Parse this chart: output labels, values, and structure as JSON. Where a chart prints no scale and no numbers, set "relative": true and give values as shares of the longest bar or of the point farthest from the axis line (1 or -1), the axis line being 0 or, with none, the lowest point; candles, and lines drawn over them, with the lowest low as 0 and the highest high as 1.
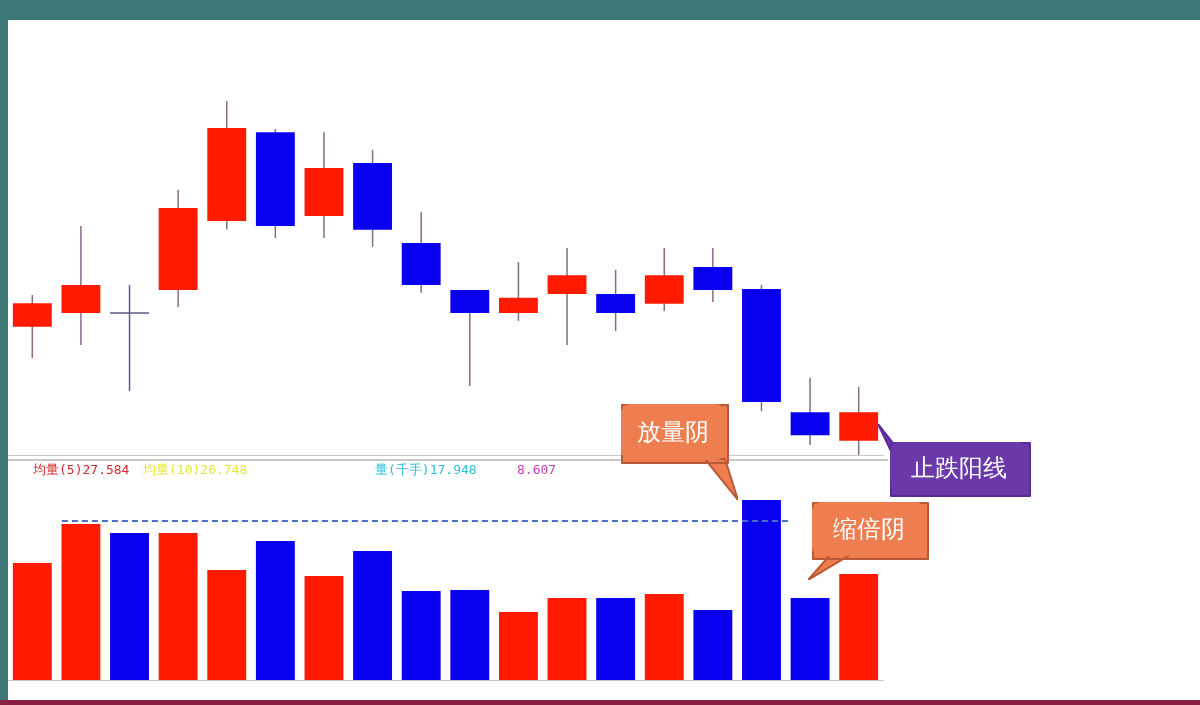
{
  "chart_data": [
    {
      "type": "candlestick",
      "relative": true,
      "categories": [
        null,
        null,
        null,
        null,
        null,
        null,
        null,
        null,
        null,
        null,
        null,
        null,
        null,
        null,
        null,
        null,
        null,
        null
      ],
      "ohlc": [
        [
          0.362,
          0.452,
          0.274,
          0.429
        ],
        [
          0.401,
          0.647,
          0.311,
          0.48
        ],
        [
          0.401,
          0.48,
          0.181,
          0.401
        ],
        [
          0.466,
          0.749,
          0.418,
          0.698
        ],
        [
          0.661,
          1,
          0.638,
          0.924
        ],
        [
          0.912,
          0.921,
          0.613,
          0.647
        ],
        [
          0.675,
          0.912,
          0.613,
          0.811
        ],
        [
          0.825,
          0.862,
          0.588,
          0.636
        ],
        [
          0.599,
          0.686,
          0.458,
          0.48
        ],
        [
          0.466,
          0.466,
          0.195,
          0.401
        ],
        [
          0.401,
          0.545,
          0.379,
          0.444
        ],
        [
          0.455,
          0.585,
          0.311,
          0.508
        ],
        [
          0.455,
          0.523,
          0.35,
          0.401
        ],
        [
          0.427,
          0.585,
          0.407,
          0.508
        ],
        [
          0.531,
          0.585,
          0.432,
          0.466
        ],
        [
          0.469,
          0.48,
          0.124,
          0.15
        ],
        [
          0.121,
          0.218,
          0.028,
          0.056
        ],
        [
          0.04,
          0.192,
          0,
          0.121
        ]
      ],
      "colors": [
        "#ff1a00",
        "#ff1a00",
        "#5a5a8a",
        "#ff1a00",
        "#ff1a00",
        "#0a00f0",
        "#ff1a00",
        "#0a00f0",
        "#0a00f0",
        "#0a00f0",
        "#ff1a00",
        "#ff1a00",
        "#0a00f0",
        "#ff1a00",
        "#0a00f0",
        "#0a00f0",
        "#0a00f0",
        "#ff1a00"
      ],
      "legend": false,
      "annotations": [
        "止跌阳线"
      ]
    },
    {
      "type": "bar",
      "relative": true,
      "categories": [
        null,
        null,
        null,
        null,
        null,
        null,
        null,
        null,
        null,
        null,
        null,
        null,
        null,
        null,
        null,
        null,
        null,
        null
      ],
      "values": [
        0.65,
        0.867,
        0.817,
        0.817,
        0.611,
        0.772,
        0.578,
        0.717,
        0.494,
        0.5,
        0.378,
        0.456,
        0.456,
        0.478,
        0.389,
        1,
        0.456,
        0.589
      ],
      "colors": [
        "#ff1a00",
        "#ff1a00",
        "#0a00f0",
        "#ff1a00",
        "#ff1a00",
        "#0a00f0",
        "#ff1a00",
        "#0a00f0",
        "#0a00f0",
        "#0a00f0",
        "#ff1a00",
        "#ff1a00",
        "#0a00f0",
        "#ff1a00",
        "#0a00f0",
        "#0a00f0",
        "#0a00f0",
        "#ff1a00"
      ],
      "ref_lines": [
        {
          "axis": "y",
          "value": 0.883,
          "color": "#4a6fc4",
          "line_style": "dashed"
        }
      ],
      "legend": false,
      "annotations": [
        "均量(5)27.584",
        "均量(10)26.748",
        "量(千手)17.948",
        "8.607",
        "放量阴",
        "缩倍阴"
      ]
    }
  ]
}
